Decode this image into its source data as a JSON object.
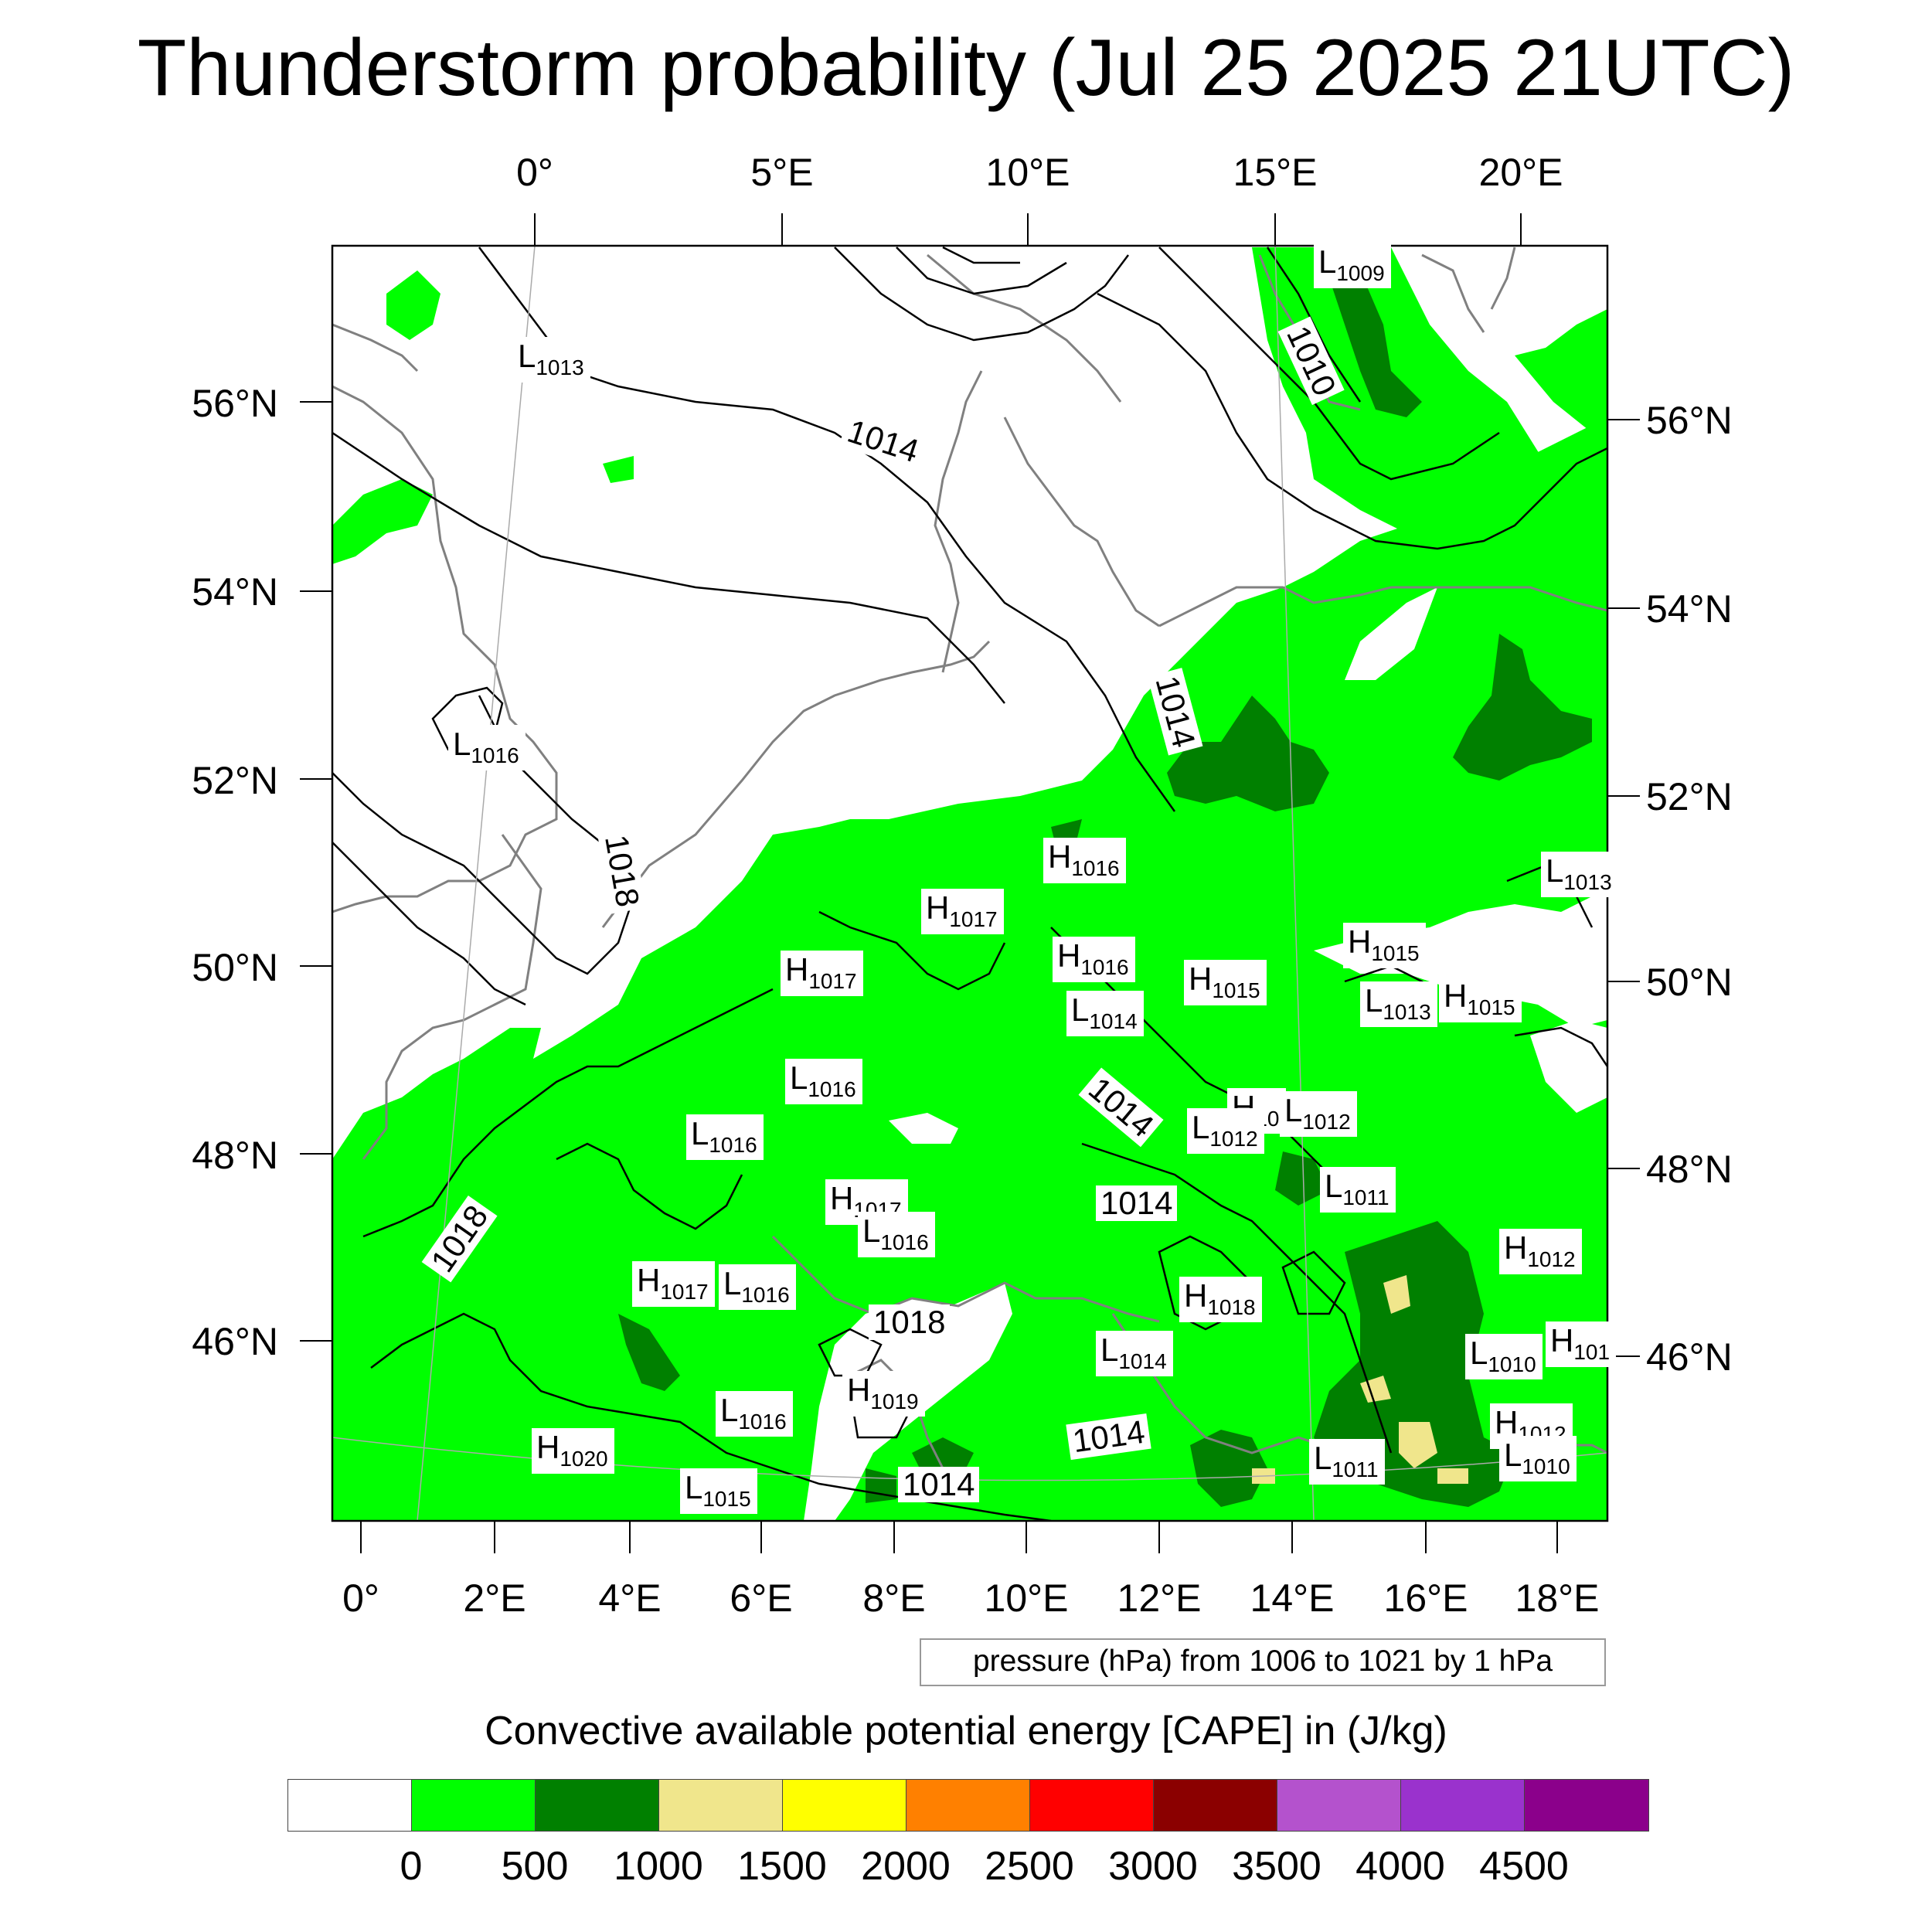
{
  "title": "Thunderstorm probability (Jul 25 2025 21UTC)",
  "lon_top_labels": [
    "0°",
    "5°E",
    "10°E",
    "15°E",
    "20°E"
  ],
  "lat_left_labels": [
    "56°N",
    "54°N",
    "52°N",
    "50°N",
    "48°N",
    "46°N"
  ],
  "lat_right_labels": [
    "56°N",
    "54°N",
    "52°N",
    "50°N",
    "48°N",
    "46°N"
  ],
  "lon_bottom_labels": [
    "0°",
    "2°E",
    "4°E",
    "6°E",
    "8°E",
    "10°E",
    "12°E",
    "14°E",
    "16°E",
    "18°E"
  ],
  "pressure_centers": [
    {
      "type": "L",
      "value": "1009"
    },
    {
      "type": "L",
      "value": "1013"
    },
    {
      "type": "L",
      "value": "1016"
    },
    {
      "type": "H",
      "value": "1016"
    },
    {
      "type": "H",
      "value": "1017"
    },
    {
      "type": "L",
      "value": "1013"
    },
    {
      "type": "H",
      "value": "1015"
    },
    {
      "type": "H",
      "value": "1016"
    },
    {
      "type": "H",
      "value": "1017"
    },
    {
      "type": "H",
      "value": "1015"
    },
    {
      "type": "L",
      "value": "1013"
    },
    {
      "type": "H",
      "value": "1015"
    },
    {
      "type": "L",
      "value": "1014"
    },
    {
      "type": "L",
      "value": "1016"
    },
    {
      "type": "L",
      "value": "1016"
    },
    {
      "type": "H",
      "value": "10"
    },
    {
      "type": "L",
      "value": "1012"
    },
    {
      "type": "L",
      "value": "1012"
    },
    {
      "type": "L",
      "value": "1011"
    },
    {
      "type": "H",
      "value": "1017"
    },
    {
      "type": "L",
      "value": "1016"
    },
    {
      "type": "H",
      "value": "1012"
    },
    {
      "type": "H",
      "value": "1017"
    },
    {
      "type": "L",
      "value": "1016"
    },
    {
      "type": "H",
      "value": "1018"
    },
    {
      "type": "H",
      "value": "101"
    },
    {
      "type": "L",
      "value": "1010"
    },
    {
      "type": "L",
      "value": "1014"
    },
    {
      "type": "H",
      "value": "1019"
    },
    {
      "type": "L",
      "value": "1016"
    },
    {
      "type": "H",
      "value": "1012"
    },
    {
      "type": "L",
      "value": "1010"
    },
    {
      "type": "H",
      "value": "1020"
    },
    {
      "type": "L",
      "value": "1011"
    },
    {
      "type": "L",
      "value": "1015"
    }
  ],
  "isobar_labels": [
    "1010",
    "1014",
    "1014",
    "1018",
    "1014",
    "1014",
    "1018",
    "1018",
    "1014",
    "1014"
  ],
  "contour_info": "pressure (hPa) from 1006 to 1021 by 1 hPa",
  "colorbar": {
    "title": "Convective available potential energy [CAPE] in (J/kg)",
    "colors": [
      "#ffffff",
      "#00ff00",
      "#008000",
      "#f0e68c",
      "#ffff00",
      "#ff8000",
      "#ff0000",
      "#8b0000",
      "#b452cd",
      "#9a32cd",
      "#8b008b"
    ],
    "ticks": [
      "0",
      "500",
      "1000",
      "1500",
      "2000",
      "2500",
      "3000",
      "3500",
      "4000",
      "4500"
    ]
  },
  "map_colors": {
    "light_green": "#00ff00",
    "dark_green": "#008000",
    "khaki": "#f0e68c",
    "coast": "#808080"
  }
}
